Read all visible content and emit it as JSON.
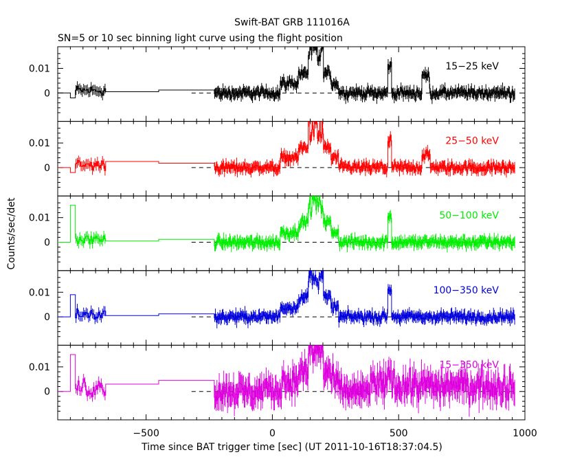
{
  "chart_data": {
    "type": "line",
    "title": "Swift-BAT GRB 111016A",
    "subtitle": "SN=5 or 10 sec binning light curve using the flight position",
    "xlabel": "Time since BAT trigger time [sec] (UT 2011-10-16T18:37:04.5)",
    "ylabel": "Counts/sec/det",
    "xlim": [
      -850,
      1000
    ],
    "x_ticks": [
      -500,
      0,
      500,
      1000
    ],
    "x_tick_labels": [
      "−500",
      "0",
      "500",
      "1000"
    ],
    "y_tick_labels": [
      "0.01",
      "0"
    ],
    "ylim": [
      -0.01,
      0.019
    ],
    "panels": [
      {
        "name": "15−25 keV",
        "color": "#000000"
      },
      {
        "name": "25−50 keV",
        "color": "#ff0000"
      },
      {
        "name": "50−100 keV",
        "color": "#00ee00"
      },
      {
        "name": "100−350 keV",
        "color": "#0000dd"
      },
      {
        "name": "15−350 keV",
        "color": "#dd00dd"
      }
    ]
  }
}
